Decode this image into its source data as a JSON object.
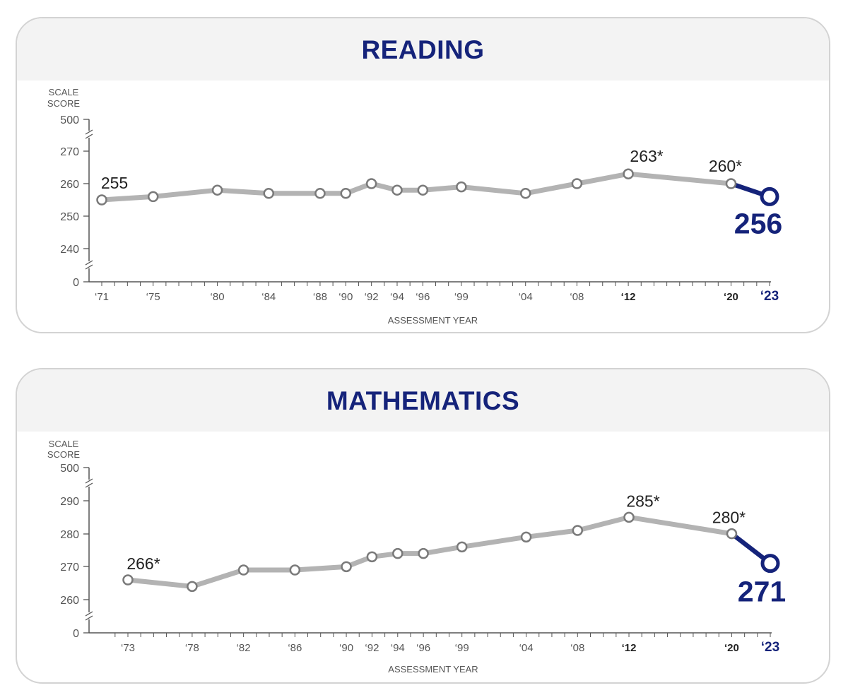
{
  "colors": {
    "history_line": "#b3b3b3",
    "marker_stroke": "#7a7a7a",
    "highlight": "#15237a",
    "axis": "#555555",
    "text": "#222222",
    "muted_text": "#555555"
  },
  "chart_data": [
    {
      "type": "line",
      "title": "READING",
      "ylabel": "SCALE SCORE",
      "xlabel": "ASSESSMENT YEAR",
      "y_ticks": [
        "500",
        "270",
        "260",
        "250",
        "240",
        "0"
      ],
      "axis_break": true,
      "grid": false,
      "x": [
        1971,
        1975,
        1980,
        1984,
        1988,
        1990,
        1992,
        1994,
        1996,
        1999,
        2004,
        2008,
        2012,
        2020,
        2023
      ],
      "x_tick_labels": [
        "‘71",
        "‘75",
        "‘80",
        "‘84",
        "‘88",
        "‘90",
        "‘92",
        "‘94",
        "‘96",
        "‘99",
        "‘04",
        "‘08",
        "‘12",
        "‘20",
        "‘23"
      ],
      "values": [
        255,
        256,
        258,
        257,
        257,
        257,
        260,
        258,
        258,
        259,
        257,
        260,
        263,
        260,
        256
      ],
      "ylim": [
        235,
        275
      ],
      "annotations": [
        {
          "year": 1971,
          "text": "255"
        },
        {
          "year": 2012,
          "text": "263*"
        },
        {
          "year": 2020,
          "text": "260*"
        }
      ],
      "highlight": {
        "year": 2023,
        "text": "256"
      }
    },
    {
      "type": "line",
      "title": "MATHEMATICS",
      "ylabel": "SCALE SCORE",
      "xlabel": "ASSESSMENT YEAR",
      "y_ticks": [
        "500",
        "290",
        "280",
        "270",
        "260",
        "0"
      ],
      "axis_break": true,
      "grid": false,
      "x": [
        1973,
        1978,
        1982,
        1986,
        1990,
        1992,
        1994,
        1996,
        1999,
        2004,
        2008,
        2012,
        2020,
        2023
      ],
      "x_tick_labels": [
        "‘73",
        "‘78",
        "‘82",
        "‘86",
        "‘90",
        "‘92",
        "‘94",
        "‘96",
        "‘99",
        "‘04",
        "‘08",
        "‘12",
        "‘20",
        "‘23"
      ],
      "values": [
        266,
        264,
        269,
        269,
        270,
        273,
        274,
        274,
        276,
        279,
        281,
        285,
        280,
        271
      ],
      "ylim": [
        255,
        295
      ],
      "annotations": [
        {
          "year": 1973,
          "text": "266*"
        },
        {
          "year": 2012,
          "text": "285*"
        },
        {
          "year": 2020,
          "text": "280*"
        }
      ],
      "highlight": {
        "year": 2023,
        "text": "271"
      }
    }
  ]
}
